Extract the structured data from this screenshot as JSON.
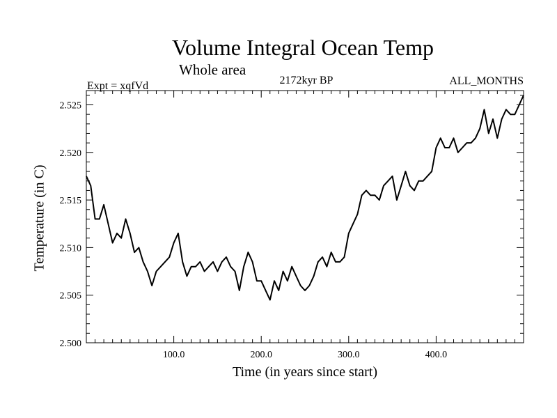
{
  "chart_data": {
    "type": "line",
    "title": "Volume Integral Ocean Temp",
    "subtitle": "Whole area",
    "experiment": "Expt = xqfVd",
    "period": "2172kyr BP",
    "months": "ALL_MONTHS",
    "xlabel": "Time (in years since start)",
    "ylabel": "Temperature (in C)",
    "xlim": [
      0,
      500
    ],
    "ylim": [
      2.5,
      2.5265
    ],
    "xticks": [
      100,
      200,
      300,
      400
    ],
    "xtick_labels": [
      "100.0",
      "200.0",
      "300.0",
      "400.0"
    ],
    "yticks": [
      2.5,
      2.505,
      2.51,
      2.515,
      2.52,
      2.525
    ],
    "ytick_labels": [
      "2.500",
      "2.505",
      "2.510",
      "2.515",
      "2.520",
      "2.525"
    ],
    "series": [
      {
        "name": "Volume integral ocean temperature",
        "x": [
          0,
          5,
          10,
          15,
          20,
          25,
          30,
          35,
          40,
          45,
          50,
          55,
          60,
          65,
          70,
          75,
          80,
          85,
          90,
          95,
          100,
          105,
          110,
          115,
          120,
          125,
          130,
          135,
          140,
          145,
          150,
          155,
          160,
          165,
          170,
          175,
          180,
          185,
          190,
          195,
          200,
          205,
          210,
          215,
          220,
          225,
          230,
          235,
          240,
          245,
          250,
          255,
          260,
          265,
          270,
          275,
          280,
          285,
          290,
          295,
          300,
          305,
          310,
          315,
          320,
          325,
          330,
          335,
          340,
          345,
          350,
          355,
          360,
          365,
          370,
          375,
          380,
          385,
          390,
          395,
          400,
          405,
          410,
          415,
          420,
          425,
          430,
          435,
          440,
          445,
          450,
          455,
          460,
          465,
          470,
          475,
          480,
          485,
          490,
          495,
          500
        ],
        "values": [
          2.5175,
          2.5165,
          2.513,
          2.513,
          2.5145,
          2.5125,
          2.5105,
          2.5115,
          2.511,
          2.513,
          2.5115,
          2.5095,
          2.51,
          2.5085,
          2.5075,
          2.506,
          2.5075,
          2.508,
          2.5085,
          2.509,
          2.5105,
          2.5115,
          2.5085,
          2.507,
          2.508,
          2.508,
          2.5085,
          2.5075,
          2.508,
          2.5085,
          2.5075,
          2.5085,
          2.509,
          2.508,
          2.5075,
          2.5055,
          2.508,
          2.5095,
          2.5085,
          2.5065,
          2.5065,
          2.5055,
          2.5045,
          2.5065,
          2.5055,
          2.5075,
          2.5065,
          2.508,
          2.507,
          2.506,
          2.5055,
          2.506,
          2.507,
          2.5085,
          2.509,
          2.508,
          2.5095,
          2.5085,
          2.5085,
          2.509,
          2.5115,
          2.5125,
          2.5135,
          2.5155,
          2.516,
          2.5155,
          2.5155,
          2.515,
          2.5165,
          2.517,
          2.5175,
          2.515,
          2.5165,
          2.518,
          2.5165,
          2.516,
          2.517,
          2.517,
          2.5175,
          2.518,
          2.5205,
          2.5215,
          2.5205,
          2.5205,
          2.5215,
          2.52,
          2.5205,
          2.521,
          2.521,
          2.5215,
          2.5225,
          2.5245,
          2.522,
          2.5235,
          2.5215,
          2.5235,
          2.5245,
          2.524,
          2.524,
          2.525,
          2.526
        ]
      }
    ]
  }
}
